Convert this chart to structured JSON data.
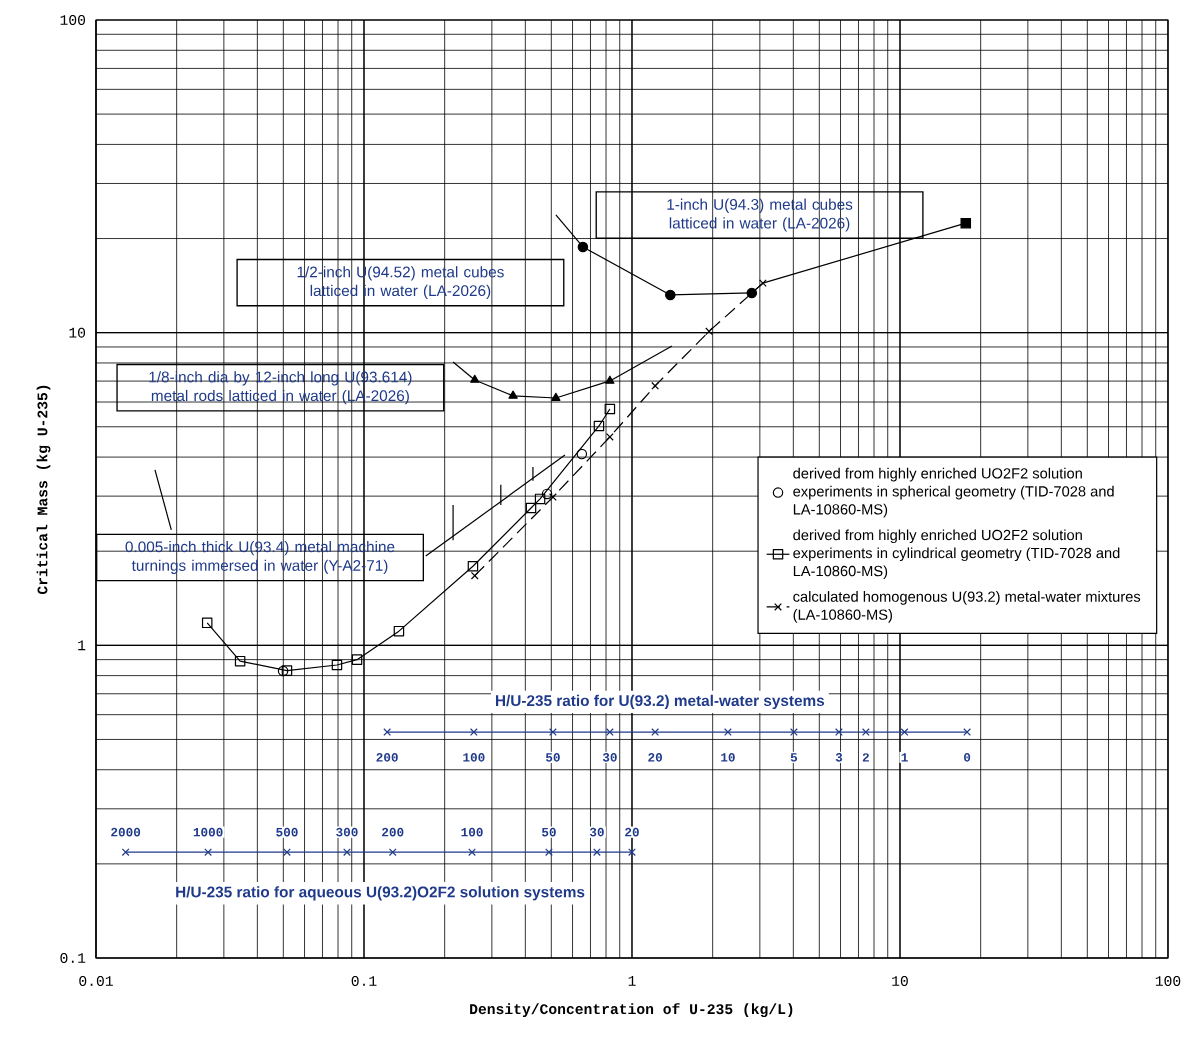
{
  "chart_data": {
    "type": "line",
    "xlabel": "Density/Concentration of U-235 (kg/L)",
    "ylabel": "Critical Mass (kg U-235)",
    "log": "xy",
    "grid": true,
    "legend": "right",
    "xlim": [
      0.01,
      100
    ],
    "ylim": [
      0.1,
      100
    ],
    "xticks": [
      0.01,
      0.1,
      1,
      10,
      100
    ],
    "yticks": [
      0.1,
      1,
      10,
      100
    ],
    "series": [
      {
        "name": "derived from highly enriched UO2F2 solution experiments in spherical geometry (TID-7028 and LA-10860-MS)",
        "type": "scatter",
        "marker": "circle",
        "color": "#000000",
        "x": [
          0.0499,
          0.482,
          0.65
        ],
        "values": [
          0.828,
          3.05,
          4.09
        ]
      },
      {
        "name": "derived from highly enriched UO2F2 solution experiments in cylindrical geometry (TID-7028 and LA-10860-MS)",
        "marker": "square",
        "line_style": "solid",
        "color": "#000000",
        "x": [
          0.026,
          0.0345,
          0.0516,
          0.0793,
          0.0942,
          0.135,
          0.255,
          0.42,
          0.454,
          0.753,
          0.827
        ],
        "values": [
          1.18,
          0.89,
          0.83,
          0.865,
          0.9,
          1.11,
          1.79,
          2.75,
          2.94,
          5.03,
          5.7
        ]
      },
      {
        "name": "calculated homogenous U(93.2) metal-water mixtures (LA-10860-MS)",
        "marker": "cross",
        "line_style": "dashed",
        "color": "#000000",
        "x": [
          0.259,
          0.507,
          0.827,
          1.22,
          1.94,
          3.08
        ],
        "values": [
          1.67,
          2.98,
          4.64,
          6.76,
          10.1,
          14.4
        ]
      },
      {
        "marker": "triangle",
        "line_style": "solid",
        "color": "#000000",
        "x": [
          0.259,
          0.36,
          0.52,
          0.827
        ],
        "values": [
          7.06,
          6.28,
          6.18,
          7.01
        ]
      },
      {
        "marker": "circle",
        "line_style": "solid",
        "color": "#000000",
        "x": [
          0.656,
          1.39,
          2.8
        ],
        "values": [
          18.8,
          13.2,
          13.4
        ]
      },
      {
        "marker": "none",
        "line_style": "solid",
        "color": "#000000",
        "x": [
          0.215,
          0.259
        ],
        "values": [
          8.06,
          7.06
        ]
      },
      {
        "marker": "none",
        "line_style": "solid",
        "color": "#000000",
        "x": [
          0.827,
          1.41
        ],
        "values": [
          7.01,
          9.06
        ]
      },
      {
        "marker": "none",
        "line_style": "solid",
        "color": "#000000",
        "x": [
          0.52,
          0.656
        ],
        "values": [
          23.8,
          18.8
        ]
      },
      {
        "marker": "none",
        "line_style": "solid",
        "color": "#000000",
        "x": [
          2.8,
          3.08,
          17.6
        ],
        "values": [
          13.4,
          14.4,
          22.4
        ]
      },
      {
        "type": "scatter",
        "marker": "square",
        "color": "#000000",
        "x": [
          17.6
        ],
        "values": [
          22.4
        ]
      },
      {
        "marker": "none",
        "line_style": "solid",
        "color": "#000000",
        "x": [
          0.0166,
          0.0191
        ],
        "values": [
          3.64,
          2.34
        ]
      },
      {
        "marker": "none",
        "line_style": "solid",
        "color": "#000000",
        "x": [
          0.17,
          0.562
        ],
        "values": [
          1.93,
          4.06
        ]
      },
      {
        "marker": "none",
        "line_style": "solid",
        "color": "#000000",
        "x": [
          0.215,
          0.215
        ],
        "values": [
          2.17,
          2.81
        ]
      },
      {
        "marker": "none",
        "line_style": "solid",
        "color": "#000000",
        "x": [
          0.324,
          0.324
        ],
        "values": [
          2.81,
          3.26
        ]
      },
      {
        "marker": "none",
        "line_style": "solid",
        "color": "#000000",
        "x": [
          0.427,
          0.427
        ],
        "values": [
          3.36,
          3.72
        ]
      },
      {
        "marker": "cross",
        "line_style": "solid",
        "color": "#1f3a8a",
        "x": [
          0.122,
          0.257,
          0.507,
          0.827,
          1.22,
          2.28,
          4.02,
          5.92,
          7.46,
          10.4,
          17.8
        ],
        "values": [
          0.528,
          0.528,
          0.528,
          0.528,
          0.528,
          0.528,
          0.528,
          0.528,
          0.528,
          0.528,
          0.528
        ]
      },
      {
        "marker": "cross",
        "line_style": "solid",
        "color": "#1f3a8a",
        "x": [
          0.0129,
          0.0262,
          0.0516,
          0.0864,
          0.128,
          0.253,
          0.49,
          0.74,
          1.0
        ],
        "values": [
          0.218,
          0.218,
          0.218,
          0.218,
          0.218,
          0.218,
          0.218,
          0.218,
          0.218
        ]
      }
    ],
    "annotations": [
      "1-inch U(94.3) metal cubes latticed in water (LA-2026)",
      "1/2-inch U(94.52) metal cubes latticed in water (LA-2026)",
      "1/8-inch dia by 12-inch long U(93.614) metal rods latticed in water (LA-2026)",
      "0.005-inch thick U(93.4) metal machine turnings immersed in water (Y-A2-71)",
      "H/U-235 ratio for U(93.2) metal-water systems",
      "200",
      "100",
      "50",
      "30",
      "20",
      "10",
      "5",
      "3",
      "2",
      "1",
      "0",
      "2000",
      "1000",
      "500",
      "300",
      "200",
      "100",
      "50",
      "30",
      "20",
      "H/U-235 ratio for aqueous U(93.2)O2F2 solution systems"
    ]
  }
}
